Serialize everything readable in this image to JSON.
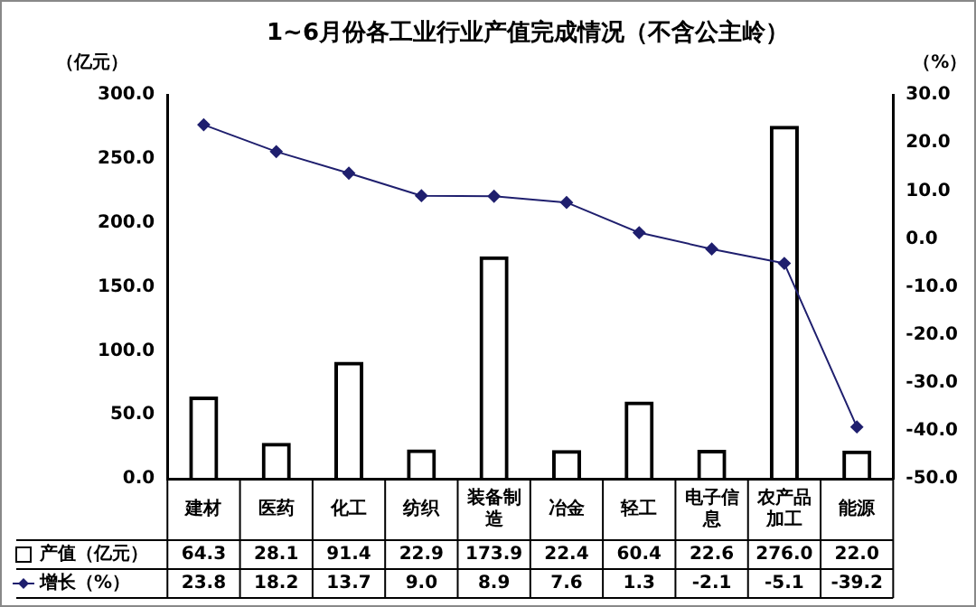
{
  "chart_data": {
    "type": "bar",
    "title": "1~6月份各工业行业产值完成情况（不含公主岭）",
    "ylabel": "（亿元）",
    "y2label": "（%）",
    "categories": [
      "建材",
      "医药",
      "化工",
      "纺织",
      "装备制造",
      "冶金",
      "轻工",
      "电子信息",
      "农产品加工",
      "能源"
    ],
    "series": [
      {
        "name": "产值（亿元）",
        "color": "#000000",
        "values": [
          64.3,
          28.1,
          91.4,
          22.9,
          173.9,
          22.4,
          60.4,
          22.6,
          276.0,
          22.0
        ],
        "value_labels": [
          "64.3",
          "28.1",
          "91.4",
          "22.9",
          "173.9",
          "22.4",
          "60.4",
          "22.6",
          "276.0",
          "22.0"
        ]
      },
      {
        "name": "增长（%）",
        "type": "line",
        "axis": "y2",
        "color": "#1f1f6e",
        "marker": "diamond",
        "values": [
          23.8,
          18.2,
          13.7,
          9.0,
          8.9,
          7.6,
          1.3,
          -2.1,
          -5.1,
          -39.2
        ],
        "value_labels": [
          "23.8",
          "18.2",
          "13.7",
          "9.0",
          "8.9",
          "7.6",
          "1.3",
          "-2.1",
          "-5.1",
          "-39.2"
        ]
      }
    ],
    "ylim": [
      0,
      300
    ],
    "yticks": [
      {
        "value": 0,
        "label": "0.0"
      },
      {
        "value": 50,
        "label": "50.0"
      },
      {
        "value": 100,
        "label": "100.0"
      },
      {
        "value": 150,
        "label": "150.0"
      },
      {
        "value": 200,
        "label": "200.0"
      },
      {
        "value": 250,
        "label": "250.0"
      },
      {
        "value": 300,
        "label": "300.0"
      }
    ],
    "y2lim": [
      -50,
      30
    ],
    "y2ticks": [
      {
        "value": -50,
        "label": "-50.0"
      },
      {
        "value": -40,
        "label": "-40.0"
      },
      {
        "value": -30,
        "label": "-30.0"
      },
      {
        "value": -20,
        "label": "-20.0"
      },
      {
        "value": -10,
        "label": "-10.0"
      },
      {
        "value": 0,
        "label": "0.0"
      },
      {
        "value": 10,
        "label": "10.0"
      },
      {
        "value": 20,
        "label": "20.0"
      },
      {
        "value": 30,
        "label": "30.0"
      }
    ],
    "legend": "bottom left",
    "grid": false
  }
}
